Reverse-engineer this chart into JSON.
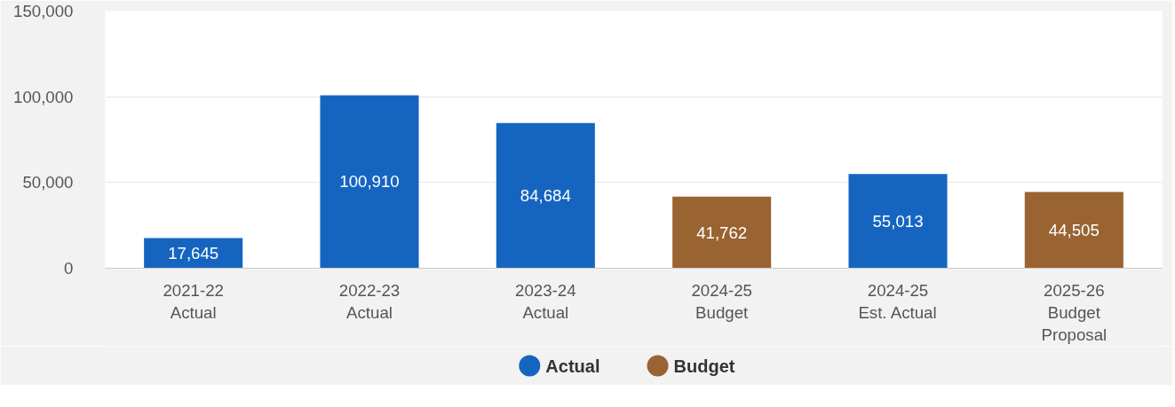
{
  "chart_data": {
    "type": "bar",
    "categories": [
      "2021-22\nActual",
      "2022-23\nActual",
      "2023-24\nActual",
      "2024-25\nBudget",
      "2024-25\nEst. Actual",
      "2025-26\nBudget\nProposal"
    ],
    "series": [
      {
        "name": "Actual",
        "color": "#1565c0",
        "values": [
          17645,
          100910,
          84684,
          null,
          55013,
          null
        ],
        "value_labels": [
          "17,645",
          "100,910",
          "84,684",
          null,
          "55,013",
          null
        ]
      },
      {
        "name": "Budget",
        "color": "#9a6332",
        "values": [
          null,
          null,
          null,
          41762,
          null,
          44505
        ],
        "value_labels": [
          null,
          null,
          null,
          "41,762",
          null,
          "44,505"
        ]
      }
    ],
    "ylim": [
      0,
      150000
    ],
    "yticks": [
      {
        "value": 0,
        "label": "0"
      },
      {
        "value": 50000,
        "label": "50,000"
      },
      {
        "value": 100000,
        "label": "100,000"
      },
      {
        "value": 150000,
        "label": "150,000"
      }
    ],
    "grid": "y",
    "legend": "bottom",
    "data_labels": true
  }
}
